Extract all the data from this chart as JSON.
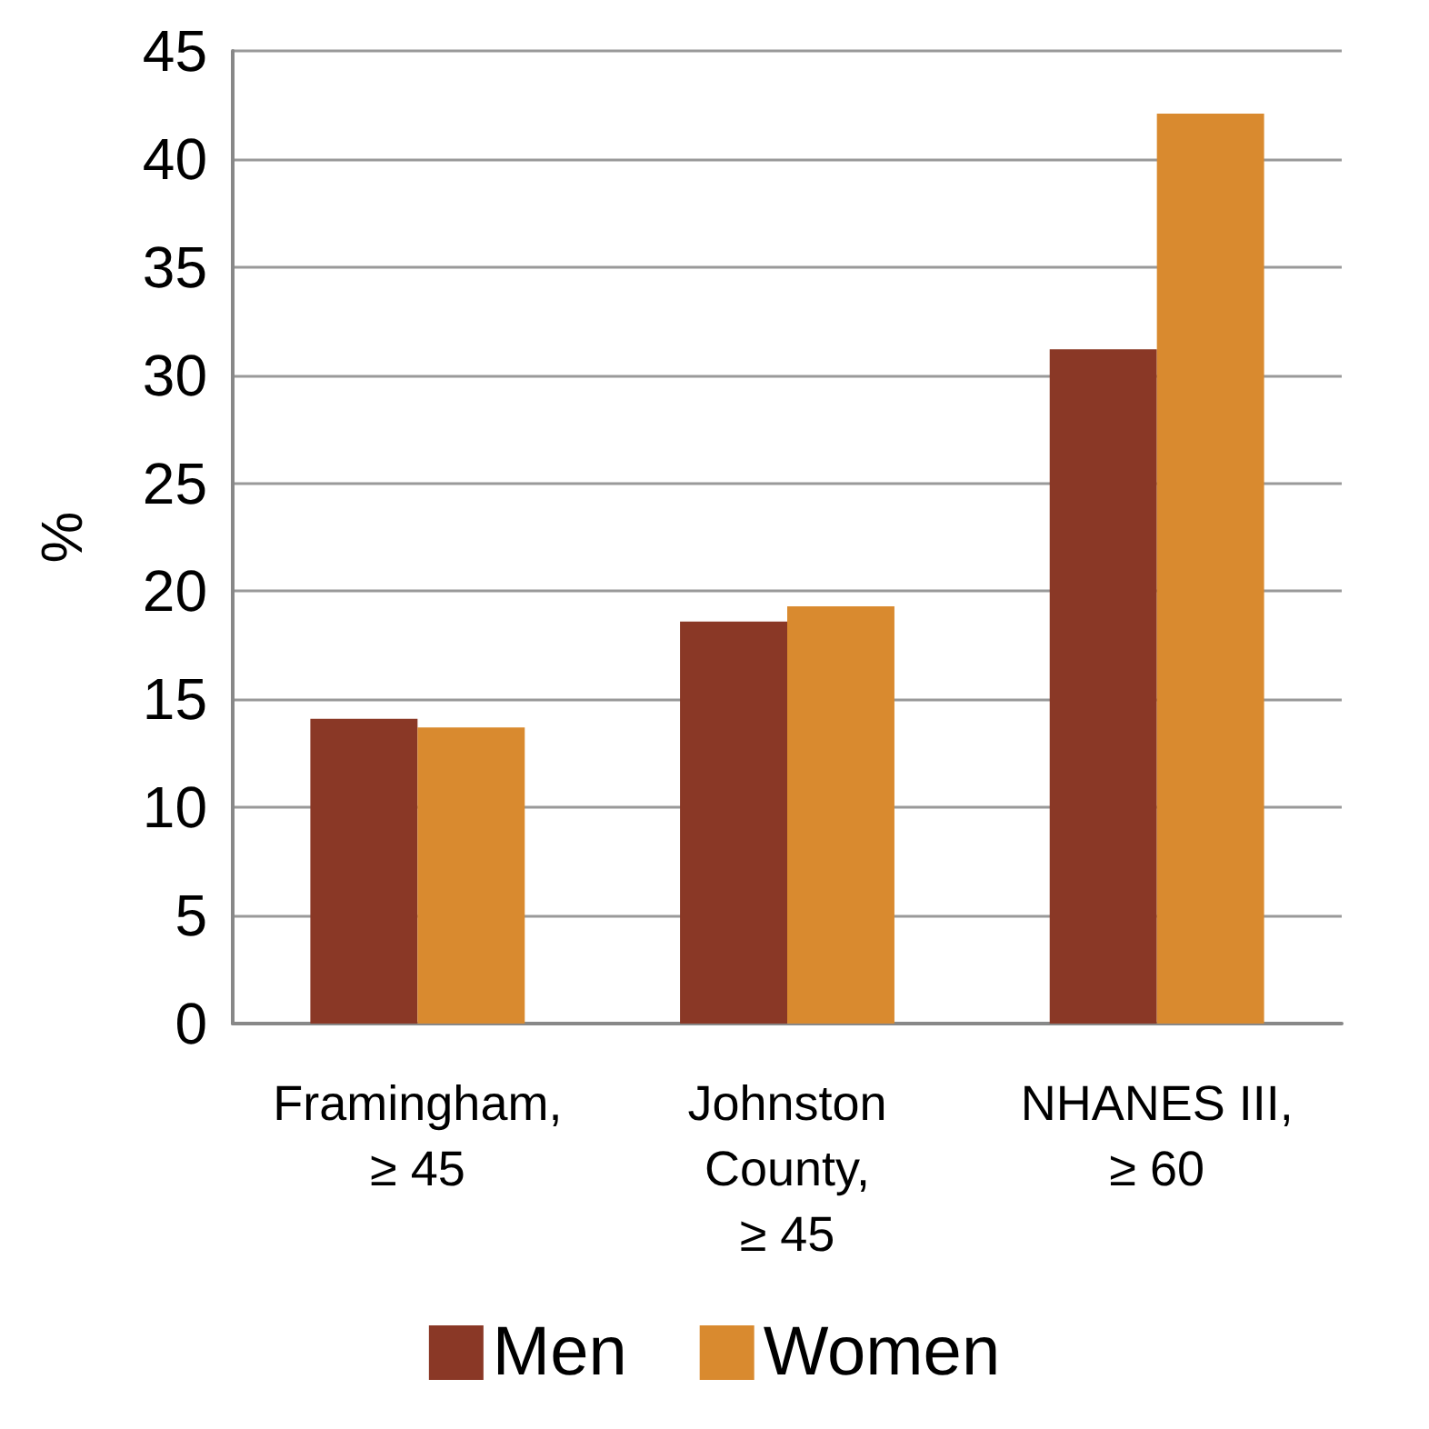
{
  "chart_data": {
    "type": "bar",
    "ylabel": "%",
    "categories": [
      "Framingham,\n≥ 45",
      "Johnston\nCounty,\n≥ 45",
      "NHANES III,\n≥ 60"
    ],
    "series": [
      {
        "name": "Men",
        "color": "#8a3826",
        "values": [
          14.1,
          18.6,
          31.2
        ]
      },
      {
        "name": "Women",
        "color": "#d98a2f",
        "values": [
          13.7,
          19.3,
          42.1
        ]
      }
    ],
    "ylim": [
      0,
      45
    ],
    "yticks": [
      0,
      5,
      10,
      15,
      20,
      25,
      30,
      35,
      40,
      45
    ],
    "grid": "y",
    "legend": "bottom"
  }
}
